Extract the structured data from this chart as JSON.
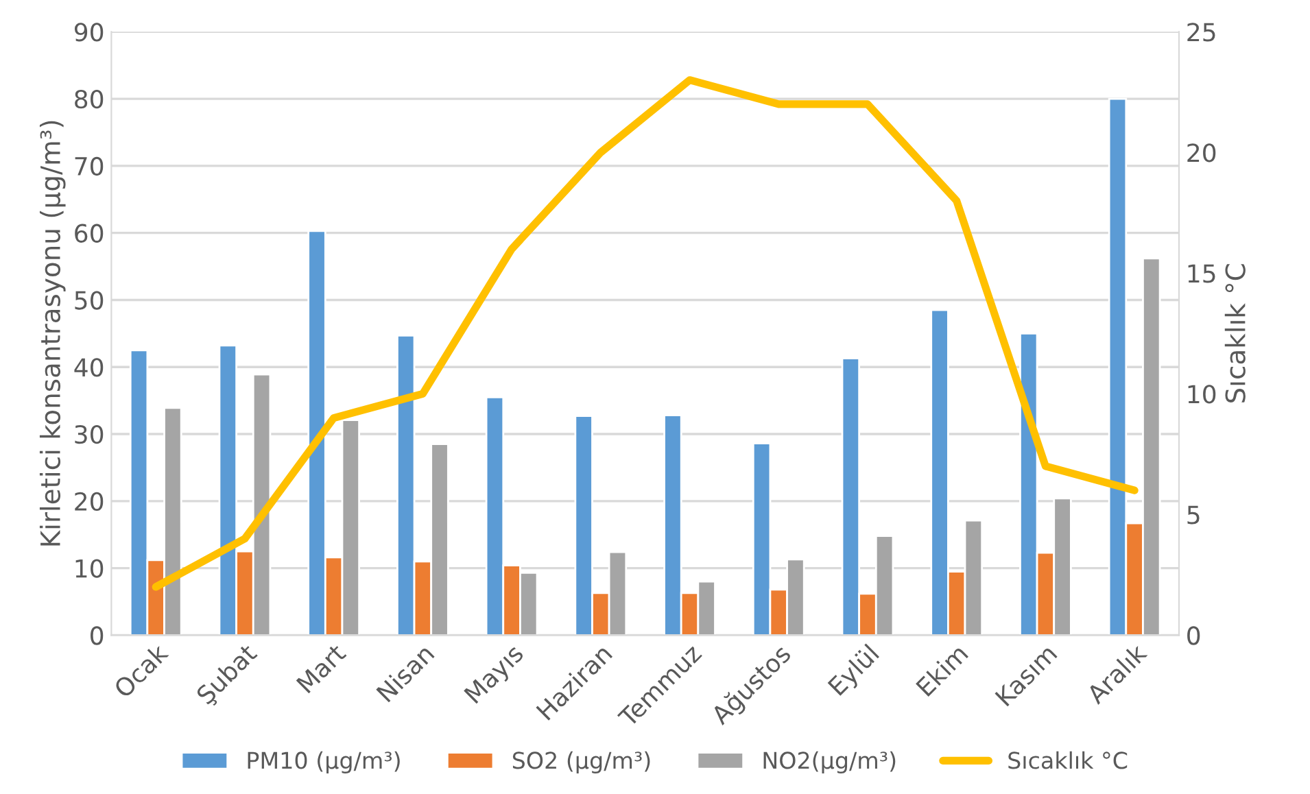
{
  "chart_data": {
    "type": "bar",
    "categories": [
      "Ocak",
      "Şubat",
      "Mart",
      "Nisan",
      "Mayıs",
      "Haziran",
      "Temmuz",
      "Ağustos",
      "Eylül",
      "Ekim",
      "Kasım",
      "Aralık"
    ],
    "ylabel": "Kirletici konsantrasyonu (µg/m³)",
    "y2label": "Sıcaklık °C",
    "series": [
      {
        "name": "PM10 (µg/m³)",
        "color": "#5b9bd5",
        "values": [
          42.5,
          43.2,
          60.3,
          44.7,
          35.5,
          32.7,
          32.8,
          28.6,
          41.3,
          48.5,
          45.0,
          80.0
        ]
      },
      {
        "name": "SO2 (µg/m³)",
        "color": "#ed7d31",
        "values": [
          11.2,
          12.5,
          11.6,
          11.0,
          10.4,
          6.3,
          6.3,
          6.8,
          6.2,
          9.5,
          12.3,
          16.7
        ]
      },
      {
        "name": "NO2(µg/m³)",
        "color": "#a5a5a5",
        "values": [
          33.9,
          38.9,
          32.1,
          28.5,
          9.3,
          12.4,
          8.0,
          11.3,
          14.8,
          17.1,
          20.4,
          56.2
        ]
      },
      {
        "name": "Sıcaklık °C",
        "color": "#ffc000",
        "type": "line",
        "axis": "y2",
        "values": [
          2,
          4,
          9,
          10,
          16,
          20,
          23,
          22,
          22,
          18,
          7,
          6
        ]
      }
    ],
    "ylim": [
      0,
      90
    ],
    "yticks": [
      0,
      10,
      20,
      30,
      40,
      50,
      60,
      70,
      80,
      90
    ],
    "y2lim": [
      0,
      25
    ],
    "y2ticks": [
      0,
      5,
      10,
      15,
      20,
      25
    ],
    "grid": "y",
    "legend": "bottom"
  }
}
